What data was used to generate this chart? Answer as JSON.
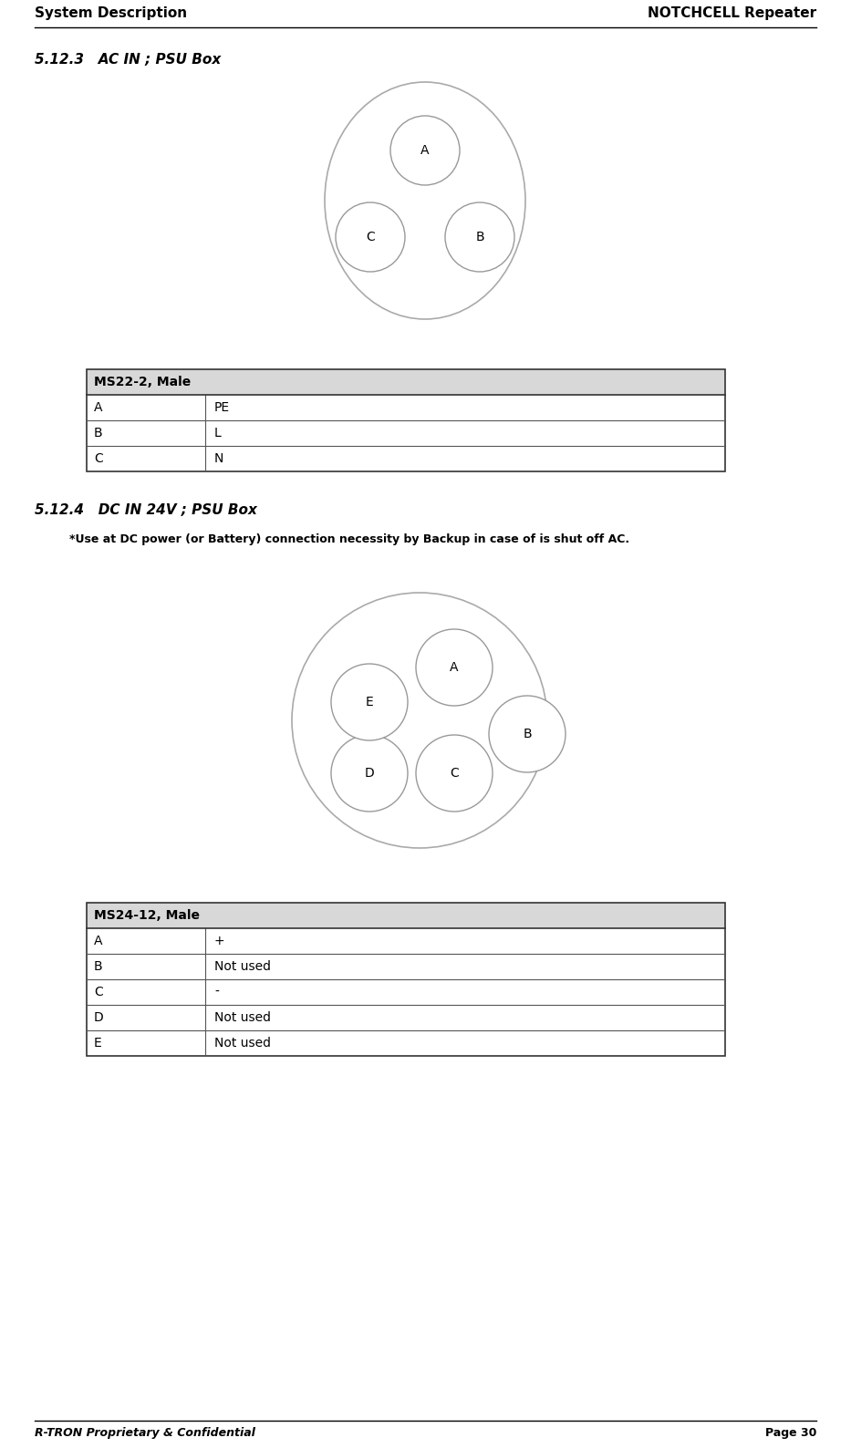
{
  "header_left": "System Description",
  "header_right": "NOTCHCELL Repeater",
  "footer_left": "R-TRON Proprietary & Confidential",
  "footer_right": "Page 30",
  "section1_title": "5.12.3   AC IN ; PSU Box",
  "section2_title": "5.12.4   DC IN 24V ; PSU Box",
  "section2_note": "*Use at DC power (or Battery) connection necessity by Backup in case of is shut off AC.",
  "table1_header": "MS22-2, Male",
  "table1_rows": [
    [
      "A",
      "PE"
    ],
    [
      "B",
      "L"
    ],
    [
      "C",
      "N"
    ]
  ],
  "table2_header": "MS24-12, Male",
  "table2_rows": [
    [
      "A",
      "+"
    ],
    [
      "B",
      "Not used"
    ],
    [
      "C",
      "-"
    ],
    [
      "D",
      "Not used"
    ],
    [
      "E",
      "Not used"
    ]
  ],
  "bg_color": "#ffffff",
  "outline_color": "#aaaaaa",
  "pin_outline_color": "#999999",
  "header_bg_color": "#d8d8d8",
  "table_border_color": "#333333",
  "row_line_color": "#555555",
  "header_font_size": 10,
  "body_font_size": 10,
  "section_font_size": 11,
  "note_font_size": 9
}
